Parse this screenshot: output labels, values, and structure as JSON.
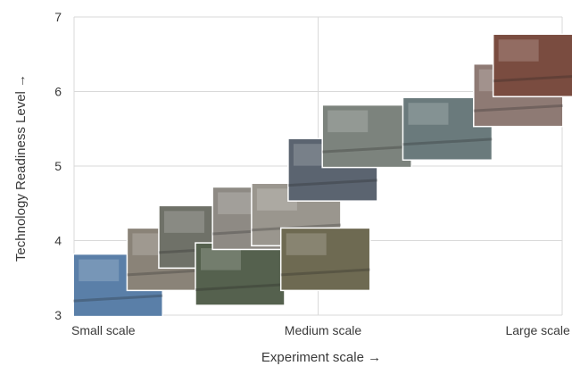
{
  "chart_data": {
    "type": "scatter",
    "xlabel": "Experiment scale →",
    "ylabel": "Technology Readiness Level →",
    "ylim": [
      3,
      7
    ],
    "yticks": [
      3,
      4,
      5,
      6,
      7
    ],
    "xlim": [
      0,
      10
    ],
    "x_category_labels": [
      {
        "label": "Small scale",
        "x": 0.6
      },
      {
        "label": "Medium scale",
        "x": 5.1
      },
      {
        "label": "Large scale",
        "x": 9.5
      }
    ],
    "grid": true,
    "points": [
      {
        "x": 0.9,
        "y": 3.4,
        "color": "#5a7fa8"
      },
      {
        "x": 2.0,
        "y": 3.75,
        "color": "#8a8378"
      },
      {
        "x": 2.65,
        "y": 4.05,
        "color": "#6f7168"
      },
      {
        "x": 3.4,
        "y": 3.55,
        "color": "#55614e"
      },
      {
        "x": 3.75,
        "y": 4.3,
        "color": "#8e8a84"
      },
      {
        "x": 4.55,
        "y": 4.35,
        "color": "#9a968e"
      },
      {
        "x": 5.15,
        "y": 3.75,
        "color": "#6e6a52"
      },
      {
        "x": 5.3,
        "y": 4.95,
        "color": "#5b6470"
      },
      {
        "x": 6.0,
        "y": 5.4,
        "color": "#7c837d"
      },
      {
        "x": 7.65,
        "y": 5.5,
        "color": "#6a7a7c"
      },
      {
        "x": 9.1,
        "y": 5.95,
        "color": "#8e7a74"
      },
      {
        "x": 9.5,
        "y": 6.35,
        "color": "#7a4c40"
      }
    ]
  },
  "colors": {
    "grid": "#d9d9d9",
    "axis": "#bfbfbf",
    "text": "#3a3a3a"
  }
}
